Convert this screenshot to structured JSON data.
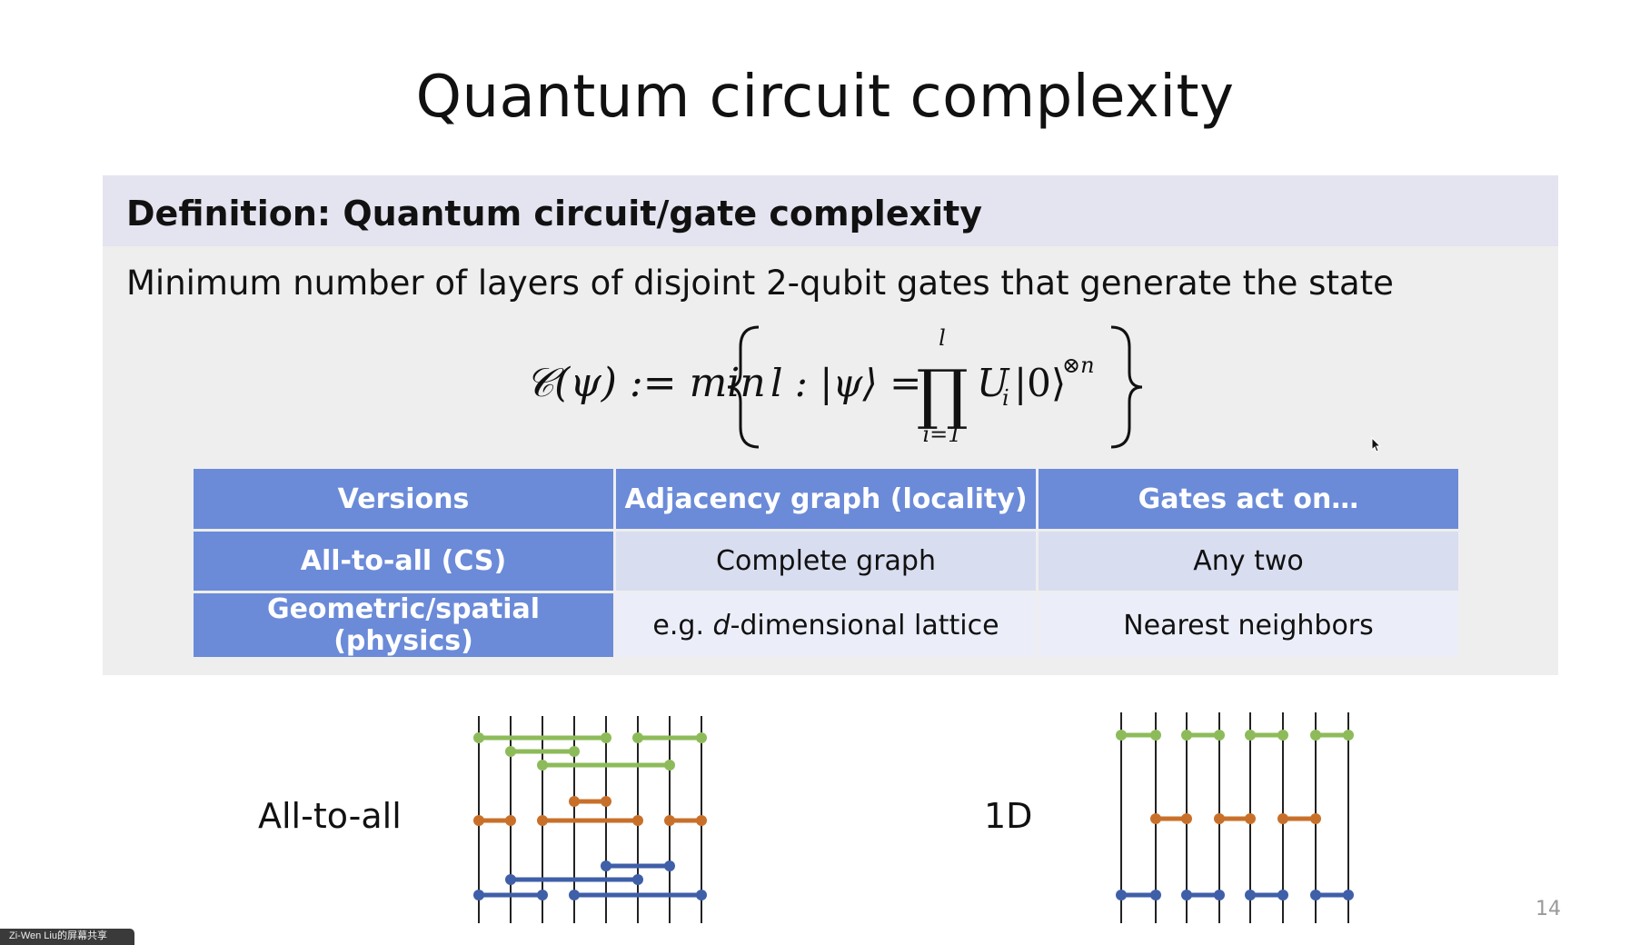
{
  "slide": {
    "title": "Quantum circuit complexity",
    "page_number": "14"
  },
  "definition": {
    "header": "Definition: Quantum circuit/gate complexity",
    "text": "Minimum number of layers of disjoint 2-qubit gates that generate the state",
    "formula": {
      "lhs": "𝒞(ψ) := min",
      "set_body": "l : |ψ⟩ = ",
      "prod_upper": "l",
      "prod_lower": "i=1",
      "operator": "U",
      "operator_sub": "i",
      "ket": "|0⟩",
      "power": "⊗n"
    }
  },
  "table": {
    "headers": [
      "Versions",
      "Adjacency graph (locality)",
      "Gates act on…"
    ],
    "rows": [
      {
        "version": "All-to-all (CS)",
        "graph": "Complete graph",
        "gates": "Any two"
      },
      {
        "version": "Geometric/spatial (physics)",
        "graph_prefix": "e.g. ",
        "graph_italic": "d",
        "graph_suffix": "-dimensional lattice",
        "gates": "Nearest neighbors"
      }
    ]
  },
  "circuits": {
    "all_to_all_label": "All-to-all",
    "one_d_label": "1D"
  },
  "colors": {
    "green": "#8dbb5a",
    "orange": "#c8702a",
    "blue": "#3f5fa8",
    "table_header": "#6b8bd9"
  },
  "screen_share_tag": "Zi-Wen Liu的屏幕共享"
}
